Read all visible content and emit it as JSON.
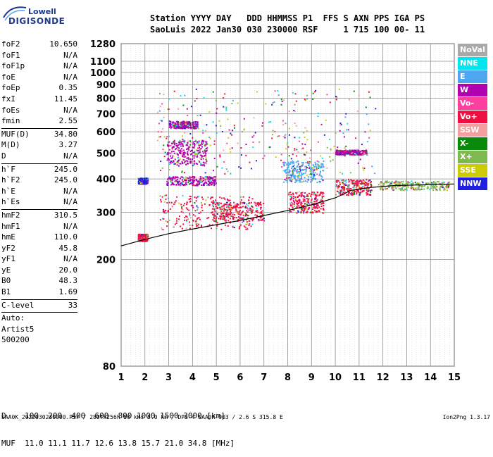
{
  "logo": {
    "top": "Lowell",
    "bottom": "DIGISONDE"
  },
  "header": {
    "line1": "Station YYYY DAY   DDD HHMMSS P1  FFS S AXN PPS IGA PS",
    "line2": "SaoLuis 2022 Jan30 030 230000 RSF     1 715 100 00- 11"
  },
  "params": [
    {
      "k": "foF2",
      "v": "10.650"
    },
    {
      "k": "foF1",
      "v": "N/A"
    },
    {
      "k": "foF1p",
      "v": "N/A"
    },
    {
      "k": "foE",
      "v": "N/A"
    },
    {
      "k": "foEp",
      "v": "0.35"
    },
    {
      "k": "fxI",
      "v": "11.45"
    },
    {
      "k": "foEs",
      "v": "N/A"
    },
    {
      "k": "fmin",
      "v": "2.55"
    },
    {
      "sep": true
    },
    {
      "k": "MUF(D)",
      "v": "34.80"
    },
    {
      "k": "M(D)",
      "v": "3.27"
    },
    {
      "k": "D",
      "v": "N/A"
    },
    {
      "sep": true
    },
    {
      "k": "h`F",
      "v": "245.0"
    },
    {
      "k": "h`F2",
      "v": "245.0"
    },
    {
      "k": "h`E",
      "v": "N/A"
    },
    {
      "k": "h`Es",
      "v": "N/A"
    },
    {
      "sep": true
    },
    {
      "k": "hmF2",
      "v": "310.5"
    },
    {
      "k": "hmF1",
      "v": "N/A"
    },
    {
      "k": "hmE",
      "v": "110.0"
    },
    {
      "k": "yF2",
      "v": "45.8"
    },
    {
      "k": "yF1",
      "v": "N/A"
    },
    {
      "k": "yE",
      "v": "20.0"
    },
    {
      "k": "B0",
      "v": "48.3"
    },
    {
      "k": "B1",
      "v": "1.69"
    },
    {
      "sep": true
    },
    {
      "k": "C-level",
      "v": "33"
    },
    {
      "sep": true
    },
    {
      "k": "Auto:",
      "v": ""
    },
    {
      "k": "Artist5",
      "v": ""
    },
    {
      "k": "500200",
      "v": ""
    }
  ],
  "muf_table": {
    "line1": "D    100  200  400  600  800 1000 1500 3000 [km]",
    "line2": "MUF  11.0 11.1 11.7 12.6 13.8 15.7 21.0 34.8 [MHz]"
  },
  "footer": {
    "left": "SAA0K_2022030230000.RSF / 280fx256h 50 kHs 5.0 km / DPS-4 SAA0K 903 / 2.6 S 315.8 E",
    "right": "Ion2Png 1.3.17"
  },
  "legend": [
    {
      "label": "NoVal",
      "color": "#a9a9a9"
    },
    {
      "label": "NNE",
      "color": "#00e5ee"
    },
    {
      "label": "E",
      "color": "#4ea6f0"
    },
    {
      "label": "W",
      "color": "#b000b0"
    },
    {
      "label": "Vo-",
      "color": "#ff3fa0"
    },
    {
      "label": "Vo+",
      "color": "#ee1040"
    },
    {
      "label": "SSW",
      "color": "#f5a0a0"
    },
    {
      "label": "X-",
      "color": "#0a8a0a"
    },
    {
      "label": "X+",
      "color": "#80b850"
    },
    {
      "label": "SSE",
      "color": "#cccc00"
    },
    {
      "label": "NNW",
      "color": "#2020e0"
    }
  ],
  "chart_data": {
    "type": "scatter",
    "title": "",
    "xlabel": "",
    "ylabel": "",
    "x_ticks": [
      1,
      2,
      3,
      4,
      5,
      6,
      7,
      8,
      9,
      10,
      11,
      12,
      13,
      14,
      15
    ],
    "y_ticks": [
      80,
      200,
      300,
      400,
      500,
      600,
      700,
      800,
      900,
      1000,
      1100,
      1280
    ],
    "xlim": [
      1,
      15
    ],
    "ylim": [
      80,
      1280
    ],
    "y_scale": "logarithmic",
    "grid": true,
    "legend_position": "right",
    "clusters": [
      {
        "x": [
          1.7,
          2.1
        ],
        "y": [
          235,
          250
        ],
        "color": "#ee1040"
      },
      {
        "x": [
          1.7,
          2.1
        ],
        "y": [
          385,
          405
        ],
        "color": "#2020e0"
      },
      {
        "x": [
          2.9,
          5.0
        ],
        "y": [
          380,
          410
        ],
        "color": "#b000b0"
      },
      {
        "x": [
          2.9,
          4.6
        ],
        "y": [
          450,
          560
        ],
        "color": "#b000b0"
      },
      {
        "x": [
          3.0,
          4.2
        ],
        "y": [
          620,
          660
        ],
        "color": "#b000b0"
      },
      {
        "x": [
          2.6,
          6.5
        ],
        "y": [
          260,
          350
        ],
        "color": "#ee1040"
      },
      {
        "x": [
          4.8,
          7.0
        ],
        "y": [
          280,
          330
        ],
        "color": "#ee1040"
      },
      {
        "x": [
          7.8,
          9.5
        ],
        "y": [
          390,
          470
        ],
        "color": "#4ea6f0"
      },
      {
        "x": [
          8.0,
          9.5
        ],
        "y": [
          300,
          360
        ],
        "color": "#ee1040"
      },
      {
        "x": [
          10.0,
          11.3
        ],
        "y": [
          495,
          515
        ],
        "color": "#b000b0"
      },
      {
        "x": [
          10.0,
          11.5
        ],
        "y": [
          350,
          400
        ],
        "color": "#ee1040"
      },
      {
        "x": [
          11.8,
          14.8
        ],
        "y": [
          365,
          395
        ],
        "color": "#80b850"
      }
    ],
    "ordinary_trace": {
      "x": [
        1.0,
        2.0,
        3.0,
        4.0,
        5.0,
        6.0,
        7.0,
        8.0,
        9.0,
        10.0,
        10.6
      ],
      "y": [
        225,
        238,
        250,
        260,
        270,
        280,
        292,
        305,
        320,
        340,
        360
      ]
    },
    "extraordinary_trace": {
      "x": [
        10.6,
        11.5,
        12.5,
        13.5,
        14.5,
        15.0
      ],
      "y": [
        362,
        372,
        378,
        380,
        382,
        383
      ]
    }
  }
}
